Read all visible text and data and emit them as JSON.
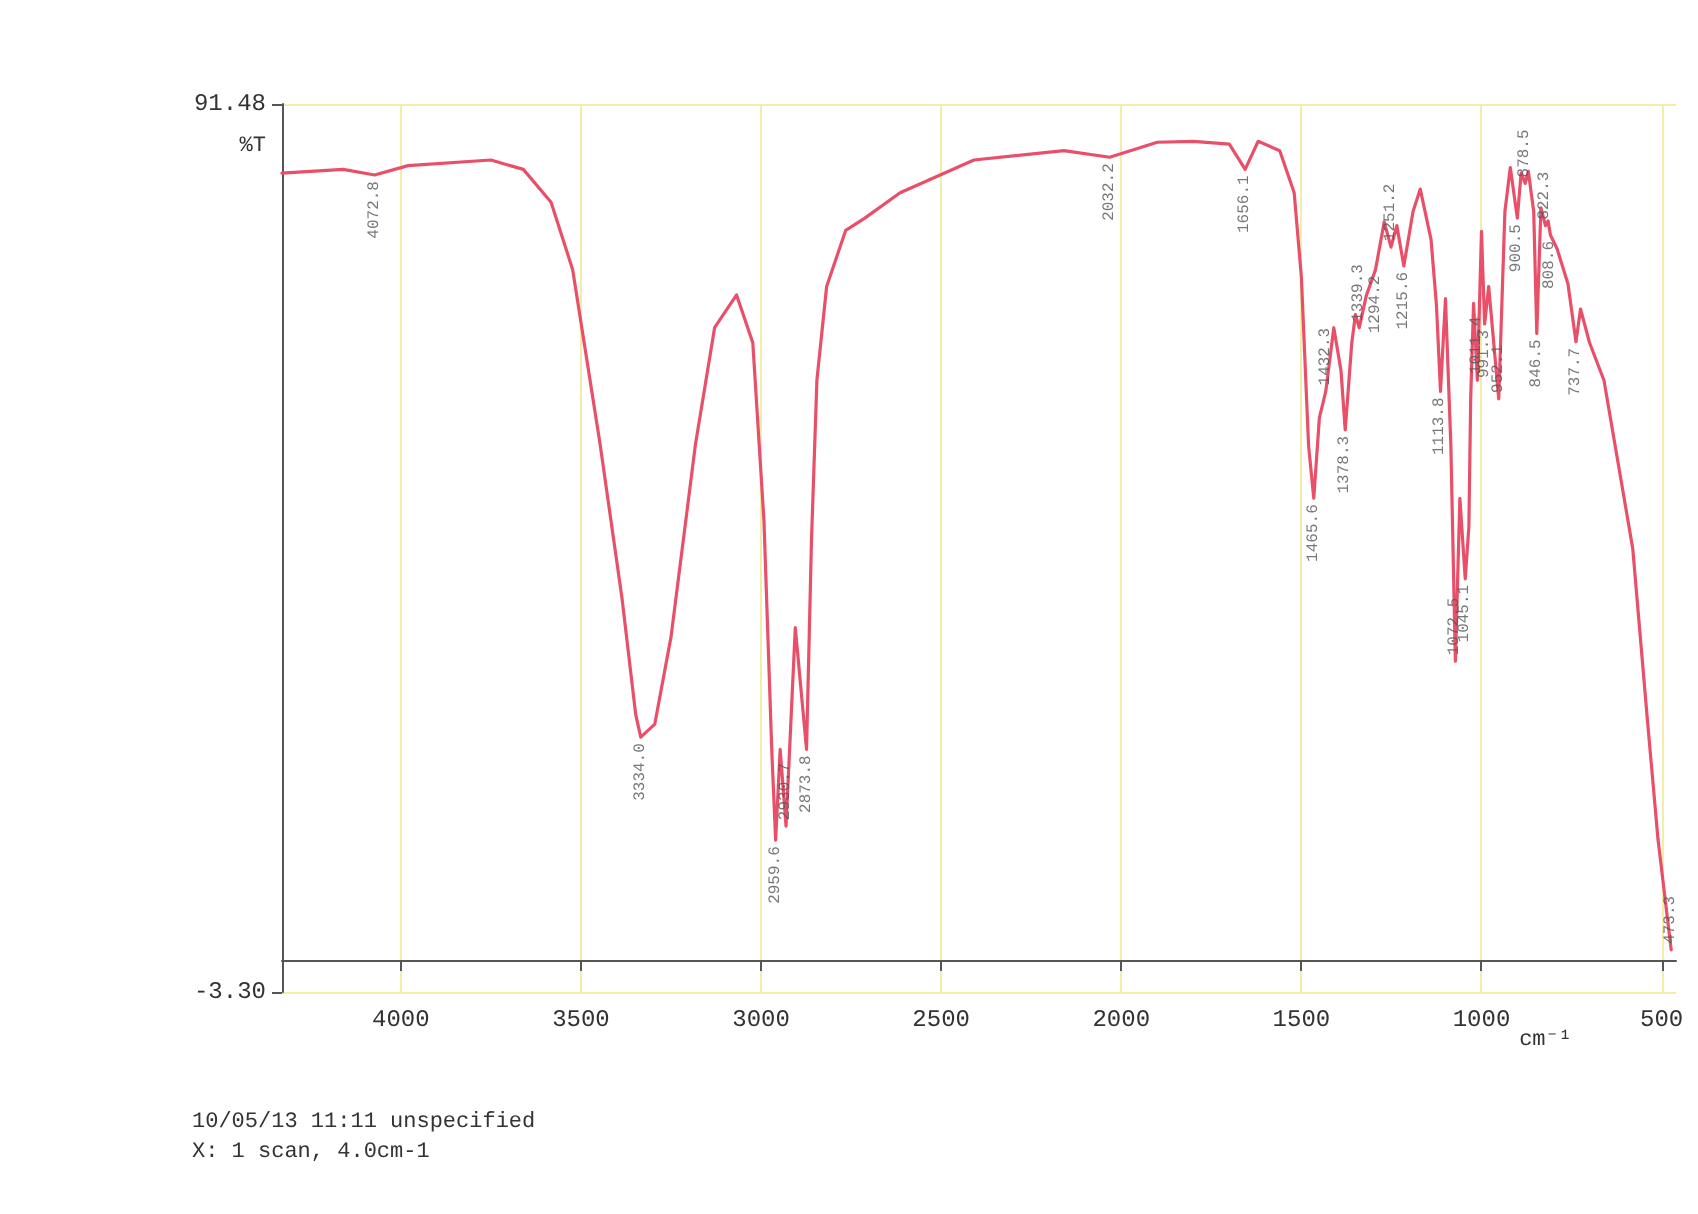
{
  "chart_data": {
    "type": "line",
    "xlabel": "cm⁻¹",
    "ylabel": "%T",
    "xlim": [
      4330,
      460
    ],
    "ylim": [
      -3.3,
      91.48
    ],
    "xticks": [
      4000,
      3500,
      3000,
      2500,
      2000,
      1500,
      1000,
      500
    ],
    "yticks": [
      91.48,
      {
        "value": -3.3,
        "label": "-3.30"
      }
    ],
    "grid": true,
    "marker": "none",
    "line_style": "solid",
    "series": [
      {
        "color": "#e8506a",
        "x": [
          4330,
          4160,
          4072.8,
          3980,
          3750,
          3660,
          3583,
          3523,
          3447,
          3386,
          3348,
          3334.0,
          3295,
          3250,
          3182,
          3129,
          3068,
          3023,
          2992,
          2970,
          2959.6,
          2947,
          2930.7,
          2905,
          2873.8,
          2860,
          2845,
          2818,
          2765,
          2712,
          2614,
          2409,
          2159,
          2032.2,
          1900,
          1800,
          1700,
          1656.1,
          1620,
          1560,
          1520,
          1500,
          1480,
          1465.6,
          1450,
          1432.3,
          1410,
          1390,
          1378.3,
          1360,
          1350,
          1339.3,
          1320,
          1294.2,
          1270,
          1251.2,
          1235,
          1215.6,
          1190,
          1170,
          1140,
          1125,
          1113.8,
          1100,
          1085,
          1072.5,
          1060,
          1045.1,
          1035,
          1030,
          1022,
          1011.4,
          1000,
          991.3,
          980,
          952.1,
          935,
          920,
          900.5,
          890,
          878.5,
          870,
          855,
          846.5,
          835,
          822.3,
          815,
          808.6,
          790,
          760,
          737.7,
          725,
          700,
          660,
          620,
          580,
          540,
          510,
          473.3
        ],
        "values": [
          84.1,
          84.5,
          83.9,
          84.9,
          85.5,
          84.5,
          81,
          73.8,
          55.2,
          38.7,
          26.3,
          23.9,
          25.3,
          34.6,
          55.2,
          67.6,
          71.1,
          66,
          47,
          22.2,
          12.9,
          22.6,
          14.4,
          35.6,
          22.6,
          45,
          62,
          72,
          78,
          79.3,
          82,
          85.5,
          86.5,
          85.8,
          87.4,
          87.5,
          87.2,
          84.5,
          87.5,
          86.5,
          82,
          73,
          55,
          49.4,
          58,
          60.8,
          67.6,
          63,
          56.7,
          66,
          69,
          67.6,
          71,
          73.8,
          78.9,
          76.2,
          78.5,
          74.2,
          80,
          82.4,
          77,
          70,
          60.8,
          70.7,
          55,
          32,
          49.4,
          40.8,
          46.4,
          60,
          70.2,
          62,
          77.9,
          68,
          72,
          60,
          80,
          84.7,
          79.3,
          84.1,
          83,
          84.3,
          80,
          67,
          80.4,
          78.5,
          79,
          77.5,
          76,
          72.3,
          66.1,
          69.6,
          66,
          62,
          53,
          44,
          26,
          13,
          1.2
        ]
      }
    ],
    "annotations": [
      {
        "text": "4072.8",
        "x": 4072.8,
        "y": 83.9
      },
      {
        "text": "3334.0",
        "x": 3334.0,
        "y": 23.9
      },
      {
        "text": "2959.6",
        "x": 2959.6,
        "y": 12.9
      },
      {
        "text": "2930.7",
        "x": 2930.7,
        "y": 14.4
      },
      {
        "text": "2873.8",
        "x": 2873.8,
        "y": 22.6
      },
      {
        "text": "2032.2",
        "x": 2032.2,
        "y": 85.8
      },
      {
        "text": "1656.1",
        "x": 1656.1,
        "y": 84.5
      },
      {
        "text": "1465.6",
        "x": 1465.6,
        "y": 49.4
      },
      {
        "text": "1432.3",
        "x": 1432.3,
        "y": 60.8
      },
      {
        "text": "1378.3",
        "x": 1378.3,
        "y": 56.7
      },
      {
        "text": "1339.3",
        "x": 1339.3,
        "y": 67.6
      },
      {
        "text": "1294.2",
        "x": 1294.2,
        "y": 73.8
      },
      {
        "text": "1251.2",
        "x": 1251.2,
        "y": 76.2
      },
      {
        "text": "1215.6",
        "x": 1215.6,
        "y": 74.2
      },
      {
        "text": "1113.8",
        "x": 1113.8,
        "y": 60.8
      },
      {
        "text": "1072.5",
        "x": 1072.5,
        "y": 32
      },
      {
        "text": "1045.1",
        "x": 1045.1,
        "y": 40.8
      },
      {
        "text": "1011.4",
        "x": 1011.4,
        "y": 62
      },
      {
        "text": "991.3",
        "x": 991.3,
        "y": 68
      },
      {
        "text": "952.1",
        "x": 952.1,
        "y": 60
      },
      {
        "text": "900.5",
        "x": 900.5,
        "y": 79.3
      },
      {
        "text": "878.5",
        "x": 878.5,
        "y": 83
      },
      {
        "text": "846.5",
        "x": 846.5,
        "y": 67
      },
      {
        "text": "822.3",
        "x": 822.3,
        "y": 78.5
      },
      {
        "text": "808.6",
        "x": 808.6,
        "y": 77.5
      },
      {
        "text": "737.7",
        "x": 737.7,
        "y": 66.1
      },
      {
        "text": "473.3",
        "x": 473.3,
        "y": 1.2
      },
      "10/05/13 11:11 unspecified",
      "X: 1 scan, 4.0cm-1"
    ]
  }
}
